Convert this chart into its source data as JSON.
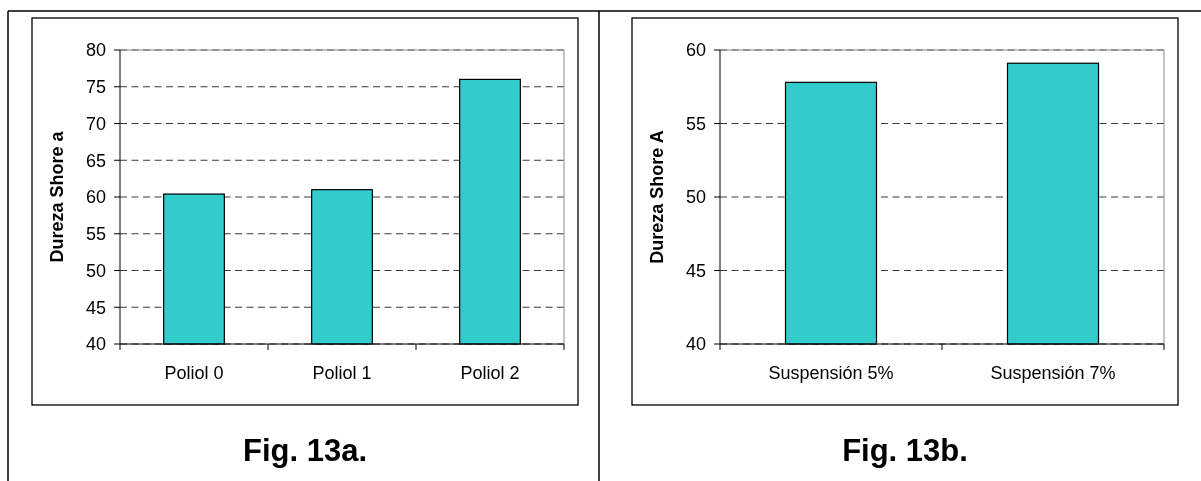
{
  "chart_data": [
    {
      "type": "bar",
      "categories": [
        "Poliol 0",
        "Poliol 1",
        "Poliol 2"
      ],
      "values": [
        60.4,
        61.0,
        76.0
      ],
      "color": "#33cccc",
      "ylabel": "Dureza Shore a",
      "ylim": [
        40,
        80
      ],
      "yticks": [
        40,
        45,
        50,
        55,
        60,
        65,
        70,
        75,
        80
      ],
      "grid": "y",
      "annotations": [
        "Fig. 13a."
      ]
    },
    {
      "type": "bar",
      "categories": [
        "Suspensión 5%",
        "Suspensión 7%"
      ],
      "values": [
        57.8,
        59.1
      ],
      "color": "#33cccc",
      "ylabel": "Dureza Shore A",
      "ylim": [
        40,
        60
      ],
      "yticks": [
        40,
        45,
        50,
        55,
        60
      ],
      "grid": "y",
      "annotations": [
        "Fig. 13b."
      ]
    }
  ]
}
